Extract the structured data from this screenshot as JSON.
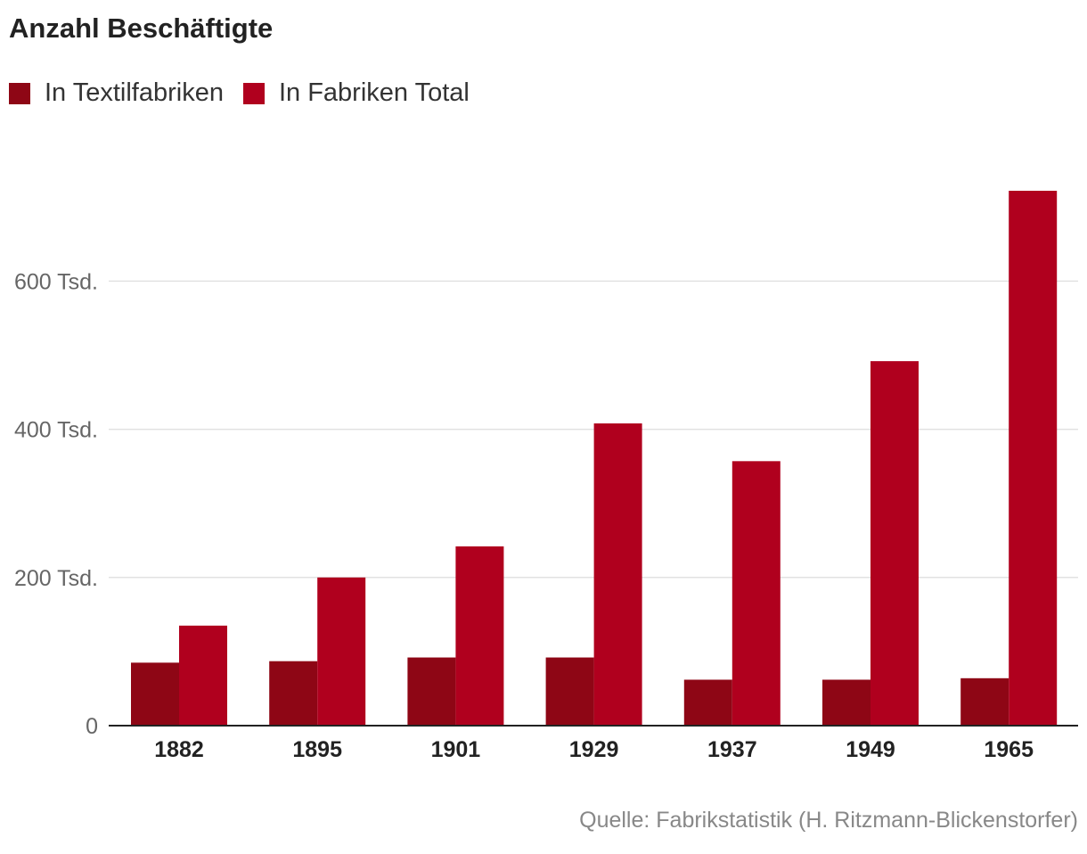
{
  "chart_data": {
    "type": "bar",
    "title": "Anzahl Beschäftigte",
    "xlabel": "",
    "ylabel": "",
    "categories": [
      "1882",
      "1895",
      "1901",
      "1929",
      "1937",
      "1949",
      "1965"
    ],
    "series": [
      {
        "name": "In Textilfabriken",
        "color": "#8e0615",
        "values": [
          85000,
          87000,
          92000,
          92000,
          62000,
          62000,
          64000
        ]
      },
      {
        "name": "In Fabriken Total",
        "color": "#b0001e",
        "values": [
          135000,
          200000,
          242000,
          408000,
          357000,
          492000,
          722000
        ]
      }
    ],
    "y_ticks": [
      {
        "value": 0,
        "label": "0"
      },
      {
        "value": 200000,
        "label": "200 Tsd."
      },
      {
        "value": 400000,
        "label": "400 Tsd."
      },
      {
        "value": 600000,
        "label": "600 Tsd."
      }
    ],
    "ylim": [
      0,
      722000
    ],
    "grid": true,
    "legend_position": "top-left",
    "source": "Quelle: Fabrikstatistik (H. Ritzmann-Blickenstorfer)"
  }
}
